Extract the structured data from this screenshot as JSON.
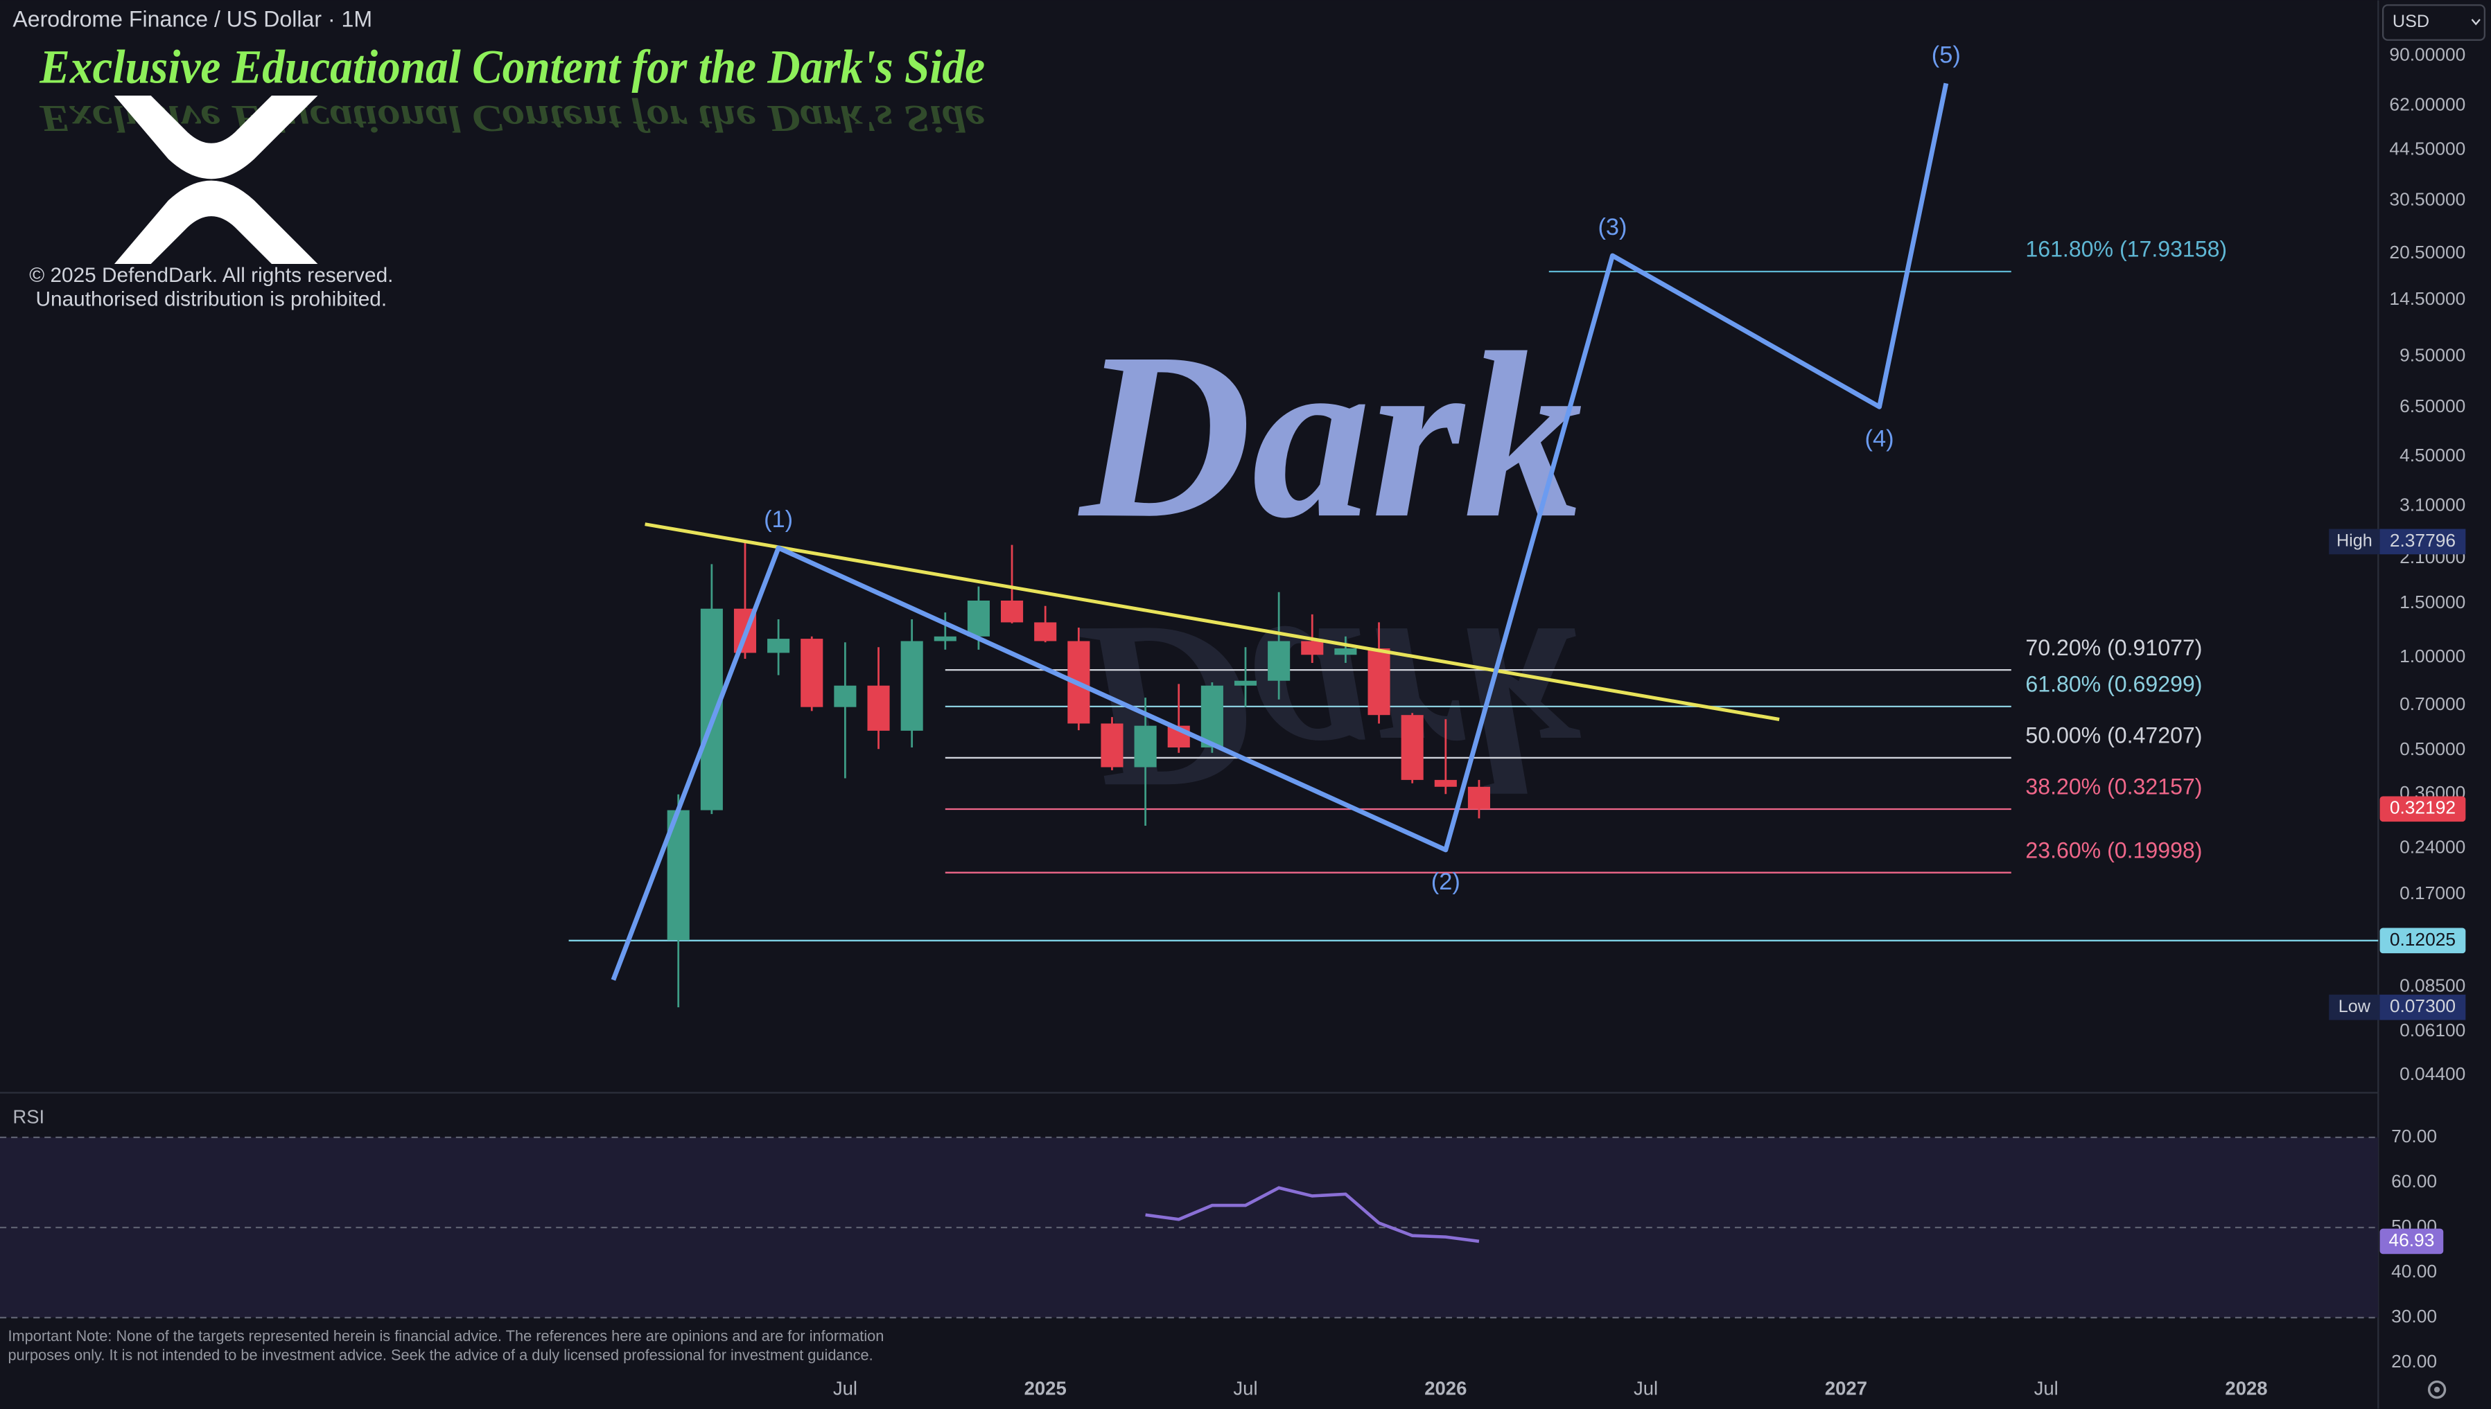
{
  "ui": {
    "currency": "USD",
    "banner": "Exclusive Educational Content for the Dark's Side",
    "watermark": "Dark",
    "copyright": [
      "© 2025 DefendDark. All rights reserved.",
      "Unauthorised distribution is prohibited."
    ],
    "note": [
      "Important Note: None of the targets represented herein is financial advice. The references here are opinions and are for information",
      "purposes only. It is not intended to be investment advice. Seek the advice of a duly licensed professional for investment guidance."
    ]
  },
  "chart_data": [
    {
      "type": "candlestick",
      "title": "Aerodrome Finance / US Dollar · 1M",
      "log_scale": true,
      "grid": false,
      "up_color": "#3e9d86",
      "down_color": "#e5404f",
      "categories": [
        null,
        null,
        null,
        null,
        null,
        "Jul",
        null,
        null,
        null,
        null,
        null,
        "2025",
        null,
        null,
        null,
        null,
        null,
        "Jul",
        null,
        null,
        null,
        null,
        null,
        "2026",
        null,
        null,
        null,
        null,
        null,
        "Jul",
        null,
        null,
        null,
        null,
        null,
        "2027",
        null,
        null,
        null,
        null,
        null,
        "Jul",
        null,
        null,
        null,
        null,
        null,
        "2028",
        null,
        null,
        null
      ],
      "open": [
        0.1206,
        0.319,
        1.44,
        1.035,
        1.15,
        0.69,
        0.81,
        0.578,
        1.13,
        1.17,
        1.53,
        1.3,
        1.13,
        0.61,
        0.44,
        0.6,
        0.51,
        0.81,
        0.84,
        1.13,
        1.02,
        1.07,
        0.65,
        0.4,
        0.38,
        null,
        null,
        null,
        null,
        null,
        null,
        null,
        null,
        null,
        null,
        null,
        null,
        null,
        null,
        null,
        null,
        null,
        null,
        null,
        null,
        null,
        null,
        null,
        null,
        null,
        null
      ],
      "high": [
        0.359,
        2.01,
        2.37796,
        1.33,
        1.17,
        1.12,
        1.08,
        1.33,
        1.4,
        1.7,
        2.32,
        1.47,
        1.25,
        0.64,
        0.74,
        0.82,
        0.83,
        1.08,
        1.63,
        1.38,
        1.17,
        1.3,
        0.66,
        0.63,
        0.4,
        null,
        null,
        null,
        null,
        null,
        null,
        null,
        null,
        null,
        null,
        null,
        null,
        null,
        null,
        null,
        null,
        null,
        null,
        null,
        null,
        null,
        null,
        null,
        null,
        null,
        null
      ],
      "low": [
        0.073,
        0.31,
        0.99,
        0.876,
        0.67,
        0.405,
        0.504,
        0.51,
        1.06,
        1.06,
        1.29,
        1.12,
        0.58,
        0.43,
        0.284,
        0.49,
        0.49,
        0.69,
        0.73,
        0.96,
        0.96,
        0.61,
        0.39,
        0.36,
        0.3,
        null,
        null,
        null,
        null,
        null,
        null,
        null,
        null,
        null,
        null,
        null,
        null,
        null,
        null,
        null,
        null,
        null,
        null,
        null,
        null,
        null,
        null,
        null,
        null,
        null,
        null
      ],
      "close": [
        0.319,
        1.44,
        1.035,
        1.15,
        0.69,
        0.81,
        0.578,
        1.13,
        1.17,
        1.53,
        1.3,
        1.13,
        0.61,
        0.44,
        0.6,
        0.51,
        0.81,
        0.84,
        1.13,
        1.02,
        1.07,
        0.65,
        0.4,
        0.38,
        0.32192,
        null,
        null,
        null,
        null,
        null,
        null,
        null,
        null,
        null,
        null,
        null,
        null,
        null,
        null,
        null,
        null,
        null,
        null,
        null,
        null,
        null,
        null,
        null,
        null,
        null,
        null
      ],
      "ylim": [
        0.039,
        136.4
      ],
      "yticks": [
        {
          "value": 90,
          "label": "90.00000"
        },
        {
          "value": 62,
          "label": "62.00000"
        },
        {
          "value": 44.5,
          "label": "44.50000"
        },
        {
          "value": 30.5,
          "label": "30.50000"
        },
        {
          "value": 20.5,
          "label": "20.50000"
        },
        {
          "value": 14.5,
          "label": "14.50000"
        },
        {
          "value": 9.5,
          "label": "9.50000"
        },
        {
          "value": 6.5,
          "label": "6.50000"
        },
        {
          "value": 4.5,
          "label": "4.50000"
        },
        {
          "value": 3.1,
          "label": "3.10000"
        },
        {
          "value": 2.1,
          "label": "2.10000"
        },
        {
          "value": 1.5,
          "label": "1.50000"
        },
        {
          "value": 1,
          "label": "1.00000"
        },
        {
          "value": 0.7,
          "label": "0.70000"
        },
        {
          "value": 0.5,
          "label": "0.50000"
        },
        {
          "value": 0.36,
          "label": "0.36000"
        },
        {
          "value": 0.24,
          "label": "0.24000"
        },
        {
          "value": 0.17,
          "label": "0.17000"
        },
        {
          "value": 0.085,
          "label": "0.08500"
        },
        {
          "value": 0.061,
          "label": "0.06100"
        },
        {
          "value": 0.044,
          "label": "0.04400"
        }
      ],
      "markers": [
        {
          "name": "High",
          "value": 2.37796
        },
        {
          "name": "Low",
          "value": 0.073,
          "label": "0.07300"
        }
      ],
      "price_lines": [
        {
          "value": 0.12025,
          "color": "#7fd3e6"
        }
      ],
      "fib_levels": [
        {
          "label": "161.80% (17.93158)",
          "value": 17.93158,
          "color": "#5fb7d4"
        },
        {
          "label": "70.20% (0.91077)",
          "value": 0.91077,
          "color": "#d1d4dc"
        },
        {
          "label": "61.80% (0.69299)",
          "value": 0.69299,
          "color": "#8ccfdf"
        },
        {
          "label": "50.00% (0.47207)",
          "value": 0.47207,
          "color": "#d1d4dc"
        },
        {
          "label": "38.20% (0.32157)",
          "value": 0.32157,
          "color": "#f0678a"
        },
        {
          "label": "23.60% (0.19998)",
          "value": 0.19998,
          "color": "#f0678a"
        }
      ],
      "trendline": {
        "x": [
          -1,
          33
        ],
        "values": [
          2.71,
          0.629
        ],
        "color": "#e8e35a"
      },
      "wave": {
        "x": [
          -1.95,
          3,
          23,
          28,
          36,
          38
        ],
        "values": [
          0.0896,
          2.27,
          0.237,
          20.2,
          6.52,
          73.3
        ],
        "labels": [
          "(1)",
          "(2)",
          "(3)",
          "(4)",
          "(5)"
        ],
        "color": "#6b9bf0"
      }
    },
    {
      "type": "line",
      "title": "RSI",
      "color": "#8a6fd6",
      "values": [
        null,
        null,
        null,
        null,
        null,
        null,
        null,
        null,
        null,
        null,
        null,
        null,
        null,
        null,
        52.8,
        51.8,
        54.9,
        54.9,
        58.8,
        57,
        57.4,
        51,
        48.2,
        47.9,
        46.93,
        null,
        null,
        null,
        null,
        null,
        null,
        null,
        null,
        null,
        null,
        null,
        null,
        null,
        null,
        null,
        null,
        null,
        null,
        null,
        null,
        null,
        null,
        null,
        null,
        null,
        null
      ],
      "ylim": [
        18.6,
        79.2
      ],
      "yticks": [
        {
          "value": 70,
          "label": "70.00"
        },
        {
          "value": 60,
          "label": "60.00"
        },
        {
          "value": 50,
          "label": "50.00"
        },
        {
          "value": 40,
          "label": "40.00"
        },
        {
          "value": 30,
          "label": "30.00"
        },
        {
          "value": 20,
          "label": "20.00"
        }
      ],
      "levels": [
        70,
        50,
        30
      ]
    }
  ]
}
